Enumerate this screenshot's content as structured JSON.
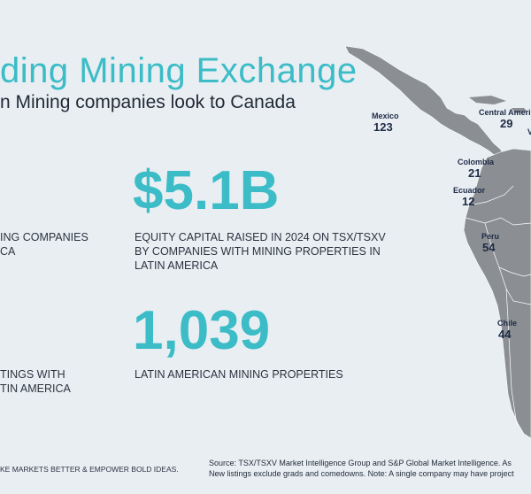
{
  "header": {
    "title": "ding Mining Exchange",
    "subtitle": "n Mining companies look to Canada"
  },
  "stats": {
    "left_top_value": "",
    "left_top_text_1": "ING COMPANIES",
    "left_top_text_2": "CA",
    "capital_value": "$5.1B",
    "capital_text_1": "EQUITY CAPITAL RAISED IN 2024 ON TSX/TSXV",
    "capital_text_2": "BY COMPANIES WITH MINING PROPERTIES IN",
    "capital_text_3": "LATIN AMERICA",
    "left_bottom_text_1": "TINGS WITH",
    "left_bottom_text_2": "TIN AMERICA",
    "properties_value": "1,039",
    "properties_text": "LATIN AMERICAN MINING PROPERTIES"
  },
  "map": {
    "labels": [
      {
        "name": "Mexico",
        "value": "123"
      },
      {
        "name": "Central America",
        "value": "29"
      },
      {
        "name": "Colombia",
        "value": "21"
      },
      {
        "name": "Ecuador",
        "value": "12"
      },
      {
        "name": "Peru",
        "value": "54"
      },
      {
        "name": "Chile",
        "value": "44"
      },
      {
        "name": "V",
        "value": ""
      }
    ]
  },
  "footer": {
    "tagline": "KE MARKETS BETTER & EMPOWER BOLD IDEAS.",
    "source_line_1": "Source: TSX/TSXV Market Intelligence Group and S&P Global Market Intelligence. As",
    "source_line_2": "New listings exclude grads and comedowns. Note: A single company may have project"
  },
  "colors": {
    "accent": "#3bbcc6",
    "background": "#e9eef3",
    "map_land": "#8b8f93",
    "label_text": "#1e2b45"
  }
}
